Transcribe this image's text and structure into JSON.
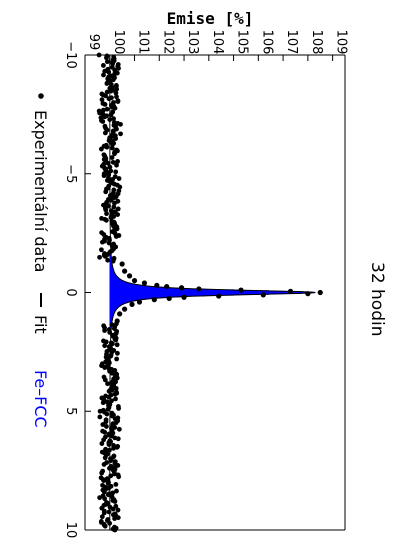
{
  "chart_data": {
    "type": "scatter",
    "title": "",
    "annotation": "32 hodin",
    "xlabel": "",
    "ylabel": "Emise [%]",
    "xlim": [
      -10,
      10
    ],
    "ylim": [
      99,
      109.5
    ],
    "x_ticks": [
      "−10",
      "−5",
      "0",
      "5",
      "10"
    ],
    "y_ticks": [
      "99",
      "100",
      "101",
      "102",
      "103",
      "104",
      "105",
      "106",
      "107",
      "108",
      "109"
    ],
    "orientation": "rotated-90-clockwise",
    "grid": false,
    "legend_placement": "bottom",
    "series": [
      {
        "name": "Experimentální data",
        "kind": "points",
        "color": "#000000",
        "baseline_mean": 100.0,
        "noise_range": [
          99.6,
          100.5
        ],
        "x": [
          -1.2,
          -0.9,
          -0.7,
          -0.5,
          -0.4,
          -0.3,
          -0.25,
          -0.2,
          -0.15,
          -0.1,
          -0.05,
          0.0,
          0.05,
          0.1,
          0.15,
          0.2,
          0.25,
          0.3,
          0.4,
          0.5,
          0.7,
          0.9,
          1.2
        ],
        "y": [
          100.5,
          100.6,
          100.8,
          101.0,
          101.4,
          101.9,
          102.3,
          102.9,
          103.6,
          105.3,
          107.3,
          108.5,
          108.0,
          106.2,
          104.4,
          103.0,
          102.4,
          101.8,
          101.2,
          100.9,
          100.6,
          100.4,
          100.3
        ]
      },
      {
        "name": "Fit",
        "kind": "line",
        "color": "#000000"
      },
      {
        "name": "Fe–FCC",
        "kind": "filled-peak",
        "color": "#0000ff",
        "center": 0.0,
        "peak_height": 8.3,
        "hwhm": 0.13,
        "baseline": 100.0
      }
    ]
  }
}
